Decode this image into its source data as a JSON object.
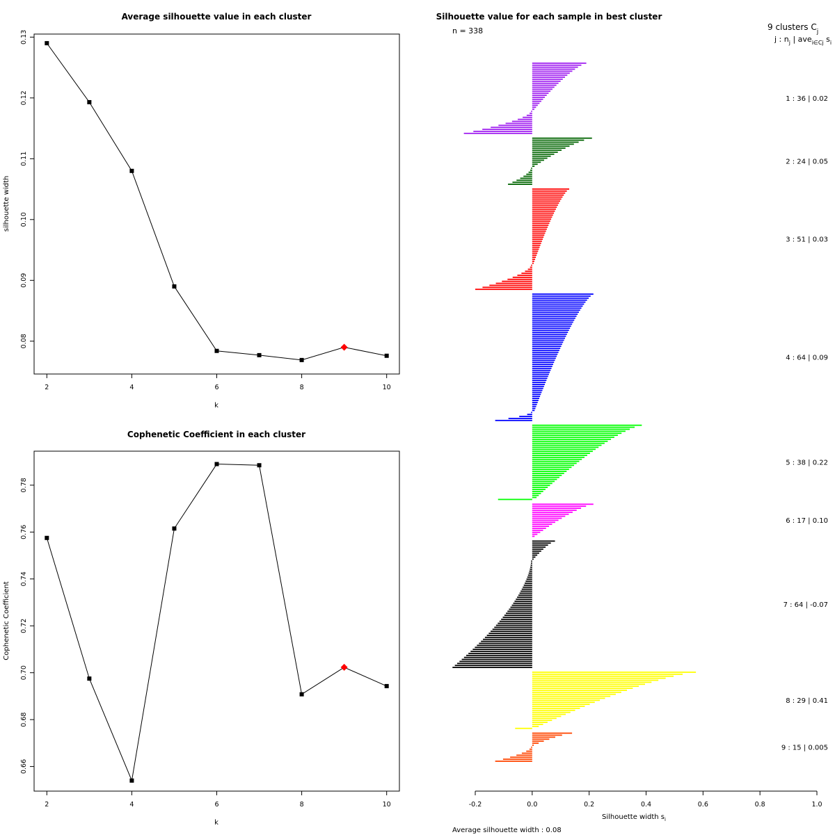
{
  "chart_data": [
    {
      "type": "line",
      "title": "Average silhouette value in each cluster",
      "xlabel": "k",
      "ylabel": "silhouette width",
      "x": [
        2,
        3,
        4,
        5,
        6,
        7,
        8,
        9,
        10
      ],
      "y": [
        0.129,
        0.1193,
        0.108,
        0.089,
        0.0784,
        0.0777,
        0.0769,
        0.079,
        0.0776
      ],
      "highlight_x": 9,
      "highlight_color": "#ff0000",
      "xlim": [
        1.7,
        10.3
      ],
      "ylim": [
        0.0746,
        0.1305
      ],
      "xticks": [
        "2",
        "4",
        "6",
        "8",
        "10"
      ],
      "yticks": [
        "0.08",
        "0.09",
        "0.10",
        "0.11",
        "0.12",
        "0.13"
      ]
    },
    {
      "type": "line",
      "title": "Cophenetic Coefficient in each cluster",
      "xlabel": "k",
      "ylabel": "Cophenetic Coefficient",
      "x": [
        2,
        3,
        4,
        5,
        6,
        7,
        8,
        9,
        10
      ],
      "y": [
        0.7575,
        0.6975,
        0.654,
        0.7615,
        0.789,
        0.7885,
        0.6908,
        0.7023,
        0.6943
      ],
      "highlight_x": 9,
      "highlight_color": "#ff0000",
      "xlim": [
        1.7,
        10.3
      ],
      "ylim": [
        0.6495,
        0.7945
      ],
      "xticks": [
        "2",
        "4",
        "6",
        "8",
        "10"
      ],
      "yticks": [
        "0.66",
        "0.68",
        "0.70",
        "0.72",
        "0.74",
        "0.76",
        "0.78"
      ]
    },
    {
      "type": "bar",
      "orientation": "horizontal",
      "title": "Silhouette value for each sample in best cluster",
      "n_label": "n = 338",
      "header_line1": "9  clusters  C",
      "header_line1_sub": "j",
      "header_line2": "j :  n",
      "header_line2_sub1": "j",
      "header_line2_mid": " | ave",
      "header_line2_sub2": "i∈Cj",
      "header_line2_end": " s",
      "header_line2_sub3": "i",
      "xlabel": "Silhouette width s",
      "xlabel_sub": "i",
      "footer": "Average silhouette width :  0.08",
      "xlim": [
        -0.2,
        1.0
      ],
      "xticks": [
        "-0.2",
        "0.0",
        "0.2",
        "0.4",
        "0.6",
        "0.8",
        "1.0"
      ],
      "clusters": [
        {
          "label": "1 :  36  |  0.02",
          "n": 36,
          "color": "#a020f0",
          "max": 0.19,
          "min": -0.24,
          "npos": 24
        },
        {
          "label": "2 :  24  |  0.05",
          "n": 24,
          "color": "#006400",
          "max": 0.21,
          "min": -0.085,
          "npos": 15
        },
        {
          "label": "3 :  51  |  0.03",
          "n": 51,
          "color": "#ff0000",
          "max": 0.13,
          "min": -0.2,
          "npos": 38
        },
        {
          "label": "4 :  64  |  0.09",
          "n": 64,
          "color": "#0000ff",
          "max": 0.215,
          "min": -0.13,
          "npos": 59
        },
        {
          "label": "5 :  38  |  0.22",
          "n": 38,
          "color": "#00ff00",
          "max": 0.385,
          "min": -0.12,
          "npos": 37
        },
        {
          "label": "6 :  17  |  0.10",
          "n": 17,
          "color": "#ff00ff",
          "max": 0.215,
          "min": 0.035,
          "npos": 17
        },
        {
          "label": "7 :  64  |  -0.07",
          "n": 64,
          "color": "#000000",
          "max": 0.08,
          "min": -0.28,
          "npos": 10
        },
        {
          "label": "8 :  29  |  0.41",
          "n": 29,
          "color": "#ffff00",
          "max": 0.575,
          "min": -0.06,
          "npos": 28
        },
        {
          "label": "9 :  15  |  0.005",
          "n": 15,
          "color": "#ff4500",
          "max": 0.14,
          "min": -0.13,
          "npos": 7
        }
      ]
    }
  ]
}
